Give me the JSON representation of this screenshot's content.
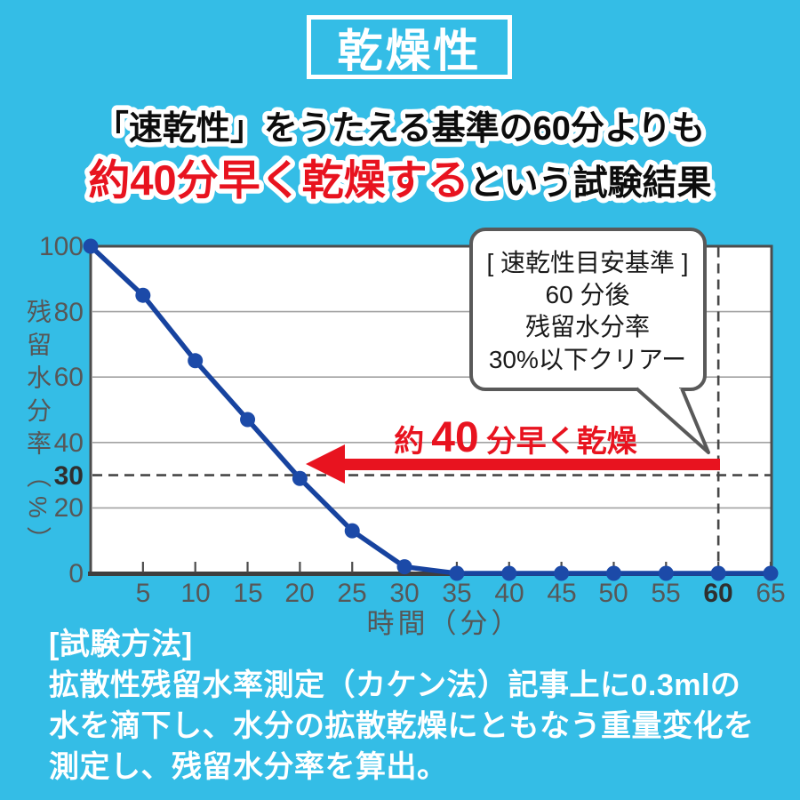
{
  "title": "乾燥性",
  "headline": {
    "line1": "「速乾性」をうたえる基準の60分よりも",
    "line2_red": "約40分早く乾燥する",
    "line2_black": "という試験結果"
  },
  "chart_data": {
    "type": "line",
    "series_name": "残留水分率",
    "x": [
      0,
      5,
      10,
      15,
      20,
      25,
      30,
      35,
      40,
      45,
      50,
      55,
      60,
      65
    ],
    "values": [
      100,
      85,
      65,
      47,
      29,
      13,
      2,
      0,
      0,
      0,
      0,
      0,
      0,
      0
    ],
    "xlabel": "時間（分）",
    "ylabel": "残留水分率（%）",
    "xlim": [
      0,
      65
    ],
    "ylim": [
      0,
      100
    ],
    "x_ticks": [
      5,
      10,
      15,
      20,
      25,
      30,
      35,
      40,
      45,
      50,
      55,
      60,
      65
    ],
    "y_ticks_top_down": [
      100,
      80,
      60,
      40,
      30,
      20,
      0
    ],
    "gridlines_y": [
      80,
      60,
      40,
      20
    ],
    "h_guide": 30,
    "v_guide": 60,
    "grid": true,
    "legend_position": "none"
  },
  "annotation": {
    "bubble_lines": [
      "[ 速乾性目安基準 ]",
      "60 分後",
      "残留水分率",
      "30%以下クリアー"
    ],
    "arrow_prefix": "約",
    "arrow_number": "40",
    "arrow_suffix": "分早く乾燥"
  },
  "methodology": {
    "lines": [
      "[試験方法]",
      "拡散性残留水率測定（カケン法）記事上に0.3mlの",
      "水を滴下し、水分の拡散乾燥にともなう重量変化を",
      "測定し、残留水分率を算出。"
    ]
  },
  "colors": {
    "background": "#34bde6",
    "accent_red": "#e8131f",
    "line_blue": "#17439f"
  }
}
